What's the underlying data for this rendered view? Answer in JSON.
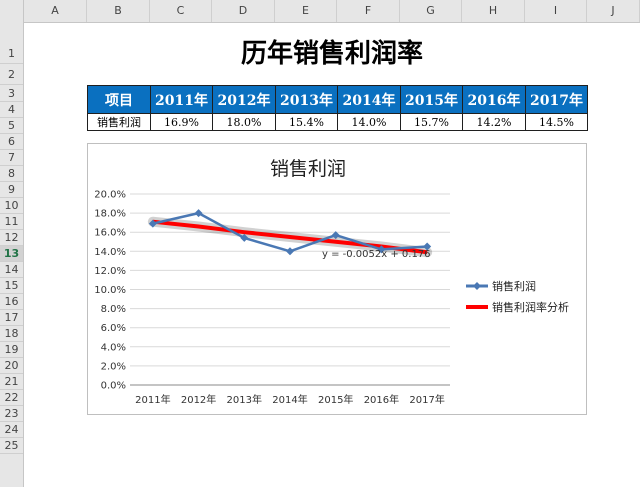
{
  "columns": [
    "A",
    "B",
    "C",
    "D",
    "E",
    "F",
    "G",
    "H",
    "I",
    "J"
  ],
  "rows": [
    "1",
    "2",
    "3",
    "4",
    "5",
    "6",
    "7",
    "8",
    "9",
    "10",
    "11",
    "12",
    "13",
    "14",
    "15",
    "16",
    "17",
    "18",
    "19",
    "20",
    "21",
    "22",
    "23",
    "24",
    "25"
  ],
  "sheet_title": "历年销售利润率",
  "table": {
    "header": [
      "项目",
      "2011年",
      "2012年",
      "2013年",
      "2014年",
      "2015年",
      "2016年",
      "2017年"
    ],
    "row": [
      "销售利润",
      "16.9%",
      "18.0%",
      "15.4%",
      "14.0%",
      "15.7%",
      "14.2%",
      "14.5%"
    ]
  },
  "chart_data": {
    "type": "line",
    "title": "销售利润",
    "categories": [
      "2011年",
      "2012年",
      "2013年",
      "2014年",
      "2015年",
      "2016年",
      "2017年"
    ],
    "series": [
      {
        "name": "销售利润",
        "values": [
          16.9,
          18.0,
          15.4,
          14.0,
          15.7,
          14.2,
          14.5
        ],
        "color": "#4a78b4"
      },
      {
        "name": "销售利润率分析",
        "trendline": true,
        "values": [
          17.1,
          16.6,
          16.0,
          15.5,
          15.0,
          14.5,
          13.9
        ],
        "color": "#ff0000"
      }
    ],
    "y_ticks": [
      "0.0%",
      "2.0%",
      "4.0%",
      "6.0%",
      "8.0%",
      "10.0%",
      "12.0%",
      "14.0%",
      "16.0%",
      "18.0%",
      "20.0%"
    ],
    "ylim": [
      0,
      20
    ],
    "grid": true,
    "legend": "right",
    "annotation": "y = -0.0052x + 0.176"
  }
}
